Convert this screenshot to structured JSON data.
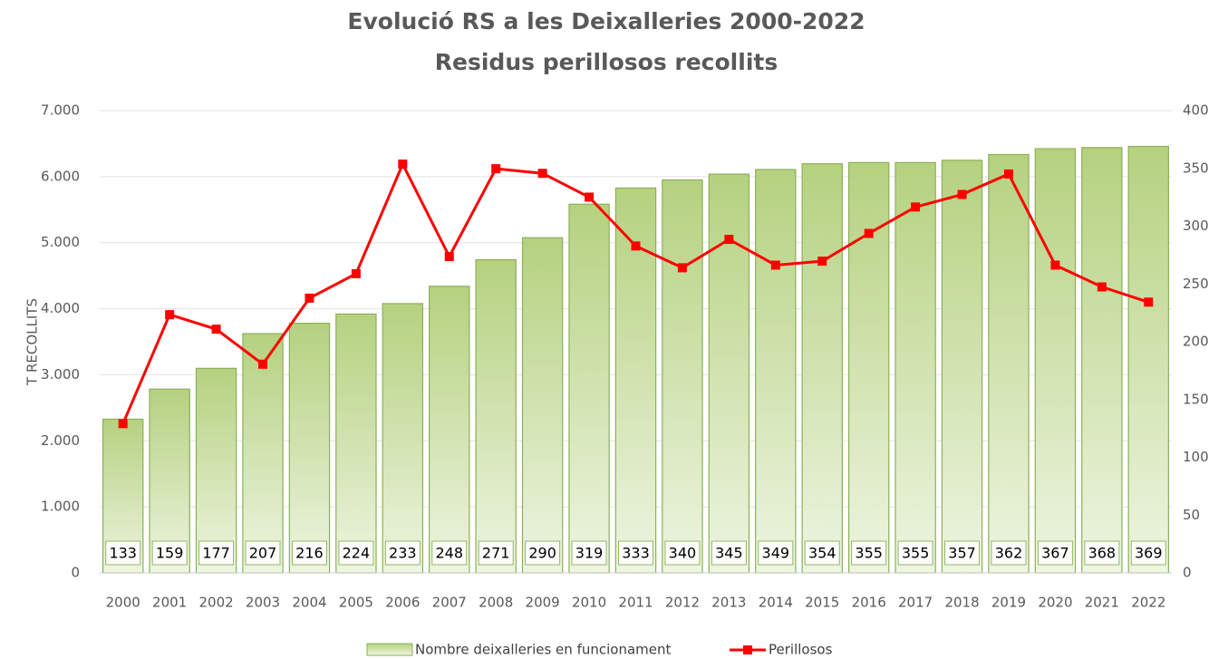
{
  "chart_data": {
    "type": "bar_line",
    "title": "Evolució RS a les Deixalleries  2000-2022",
    "subtitle": "Residus perillosos recollits",
    "y_label": "T RECOLLITS",
    "categories": [
      "2000",
      "2001",
      "2002",
      "2003",
      "2004",
      "2005",
      "2006",
      "2007",
      "2008",
      "2009",
      "2010",
      "2011",
      "2012",
      "2013",
      "2014",
      "2015",
      "2016",
      "2017",
      "2018",
      "2019",
      "2020",
      "2021",
      "2022"
    ],
    "series": [
      {
        "name": "Nombre deixalleries en funcionament",
        "type": "bar",
        "axis": "y2",
        "color": "#c5dd9c",
        "values": [
          133,
          159,
          177,
          207,
          216,
          224,
          233,
          248,
          271,
          290,
          319,
          333,
          340,
          345,
          349,
          354,
          355,
          355,
          357,
          362,
          367,
          368,
          369
        ]
      },
      {
        "name": "Perillosos",
        "type": "line",
        "color": "#ff0000",
        "values": [
          2260,
          3910,
          3690,
          3160,
          4160,
          4530,
          6190,
          4790,
          6120,
          6050,
          5690,
          4950,
          4620,
          5050,
          4660,
          4720,
          5140,
          5540,
          5730,
          6040,
          4660,
          4330,
          4100
        ]
      }
    ],
    "ylim": [
      0,
      7000
    ],
    "yticks": [
      0,
      {
        "value": 1000,
        "label": "1.000"
      },
      {
        "value": 2000,
        "label": "2.000"
      },
      {
        "value": 3000,
        "label": "3.000"
      },
      {
        "value": 4000,
        "label": "4.000"
      },
      {
        "value": 5000,
        "label": "5.000"
      },
      {
        "value": 6000,
        "label": "6.000"
      },
      {
        "value": 7000,
        "label": "7.000"
      }
    ],
    "y2lim": [
      0,
      400
    ],
    "y2ticks": [
      0,
      50,
      100,
      150,
      200,
      250,
      300,
      350,
      400
    ],
    "grid": true,
    "legend": "bottom"
  }
}
